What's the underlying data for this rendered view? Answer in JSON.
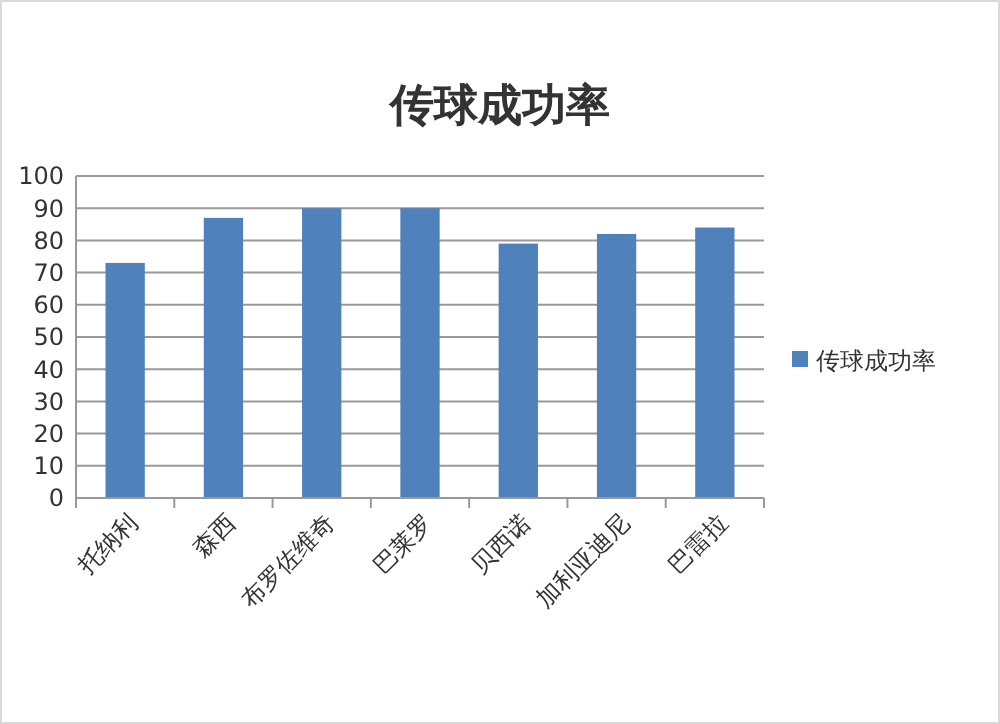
{
  "chart_data": {
    "type": "bar",
    "title": "传球成功率",
    "categories": [
      "托纳利",
      "森西",
      "布罗佐维奇",
      "巴莱罗",
      "贝西诺",
      "加利亚迪尼",
      "巴雷拉"
    ],
    "series": [
      {
        "name": "传球成功率",
        "color": "#4f81bd",
        "values": [
          73,
          87,
          90,
          90,
          79,
          82,
          84
        ]
      }
    ],
    "ylim": [
      0,
      100
    ],
    "yticks": [
      0,
      10,
      20,
      30,
      40,
      50,
      60,
      70,
      80,
      90,
      100
    ],
    "grid": "y",
    "legend": "right"
  }
}
